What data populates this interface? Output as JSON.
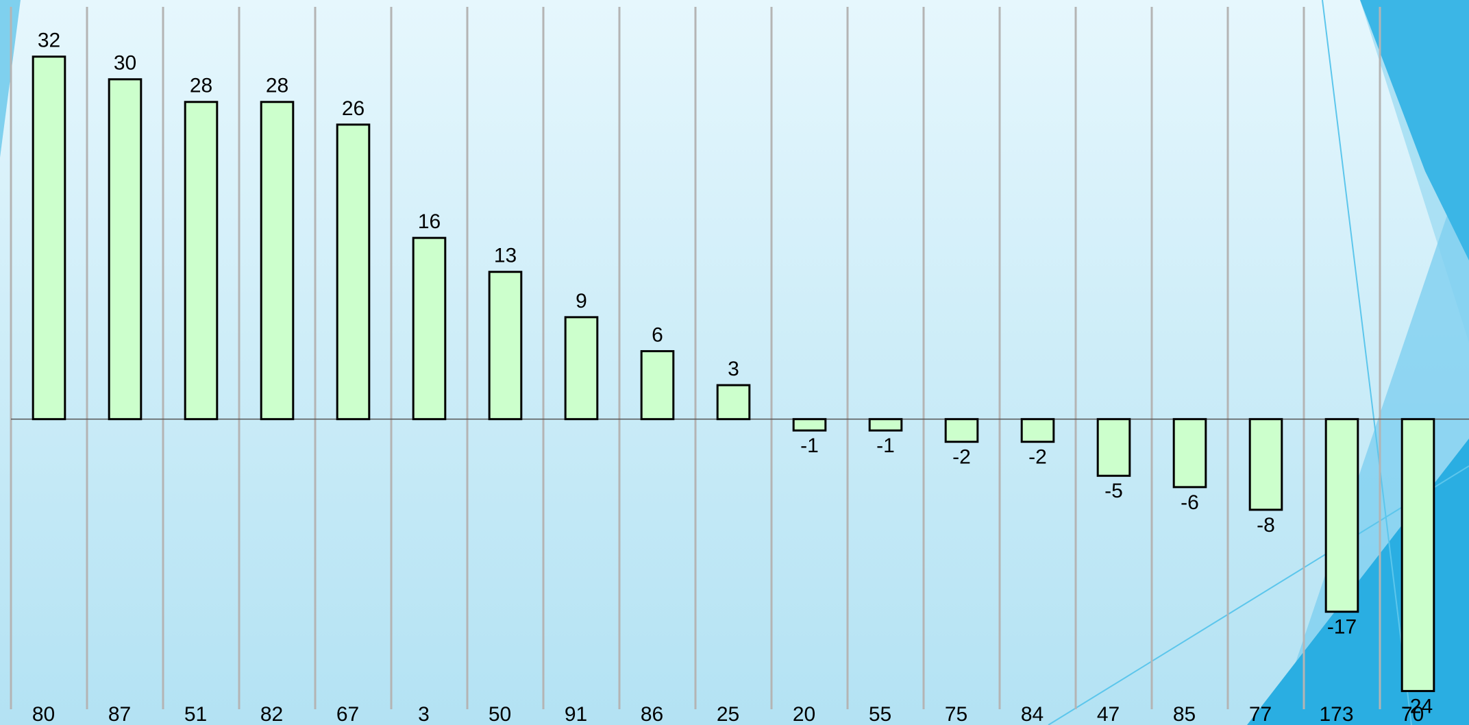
{
  "chart_data": {
    "type": "bar",
    "categories": [
      "80",
      "87",
      "51",
      "82",
      "67",
      "3",
      "50",
      "91",
      "86",
      "25",
      "20",
      "55",
      "75",
      "84",
      "47",
      "85",
      "77",
      "173",
      "70"
    ],
    "values": [
      32,
      30,
      28,
      28,
      26,
      16,
      13,
      9,
      6,
      3,
      -1,
      -1,
      -2,
      -2,
      -5,
      -6,
      -8,
      -17,
      -24
    ],
    "color": "#ccffcc",
    "ylim": [
      -27,
      37
    ],
    "grid": true
  }
}
